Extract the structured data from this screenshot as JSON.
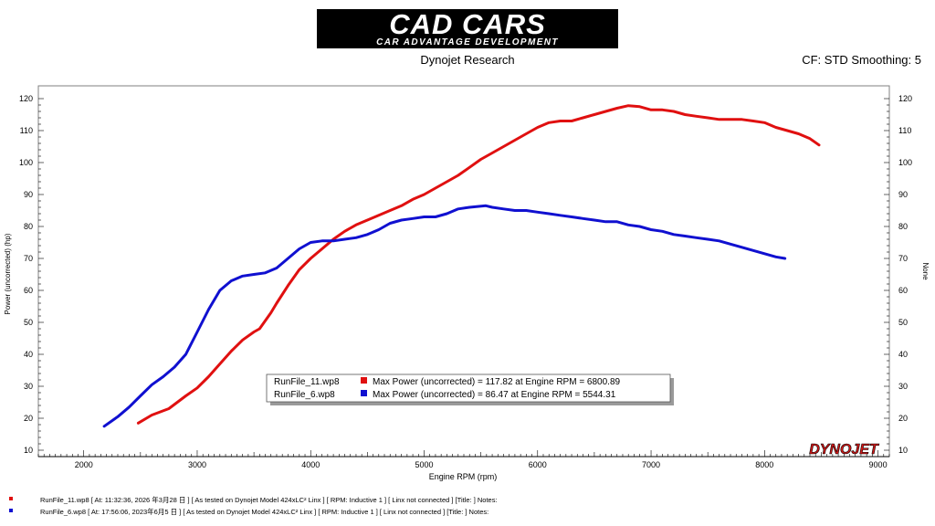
{
  "header": {
    "logo_line1": "CAD CARS",
    "logo_line2": "CAR ADVANTAGE DEVELOPMENT",
    "center": "Dynojet Research",
    "right": "CF: STD Smoothing: 5",
    "watermark": "DYNOJET"
  },
  "chart_data": {
    "type": "line",
    "xlabel": "Engine RPM (rpm)",
    "ylabel": "Power (uncorrected) (hp)",
    "y2label": "None",
    "xlim": [
      1600,
      9100
    ],
    "ylim": [
      8,
      124
    ],
    "xticks": [
      2000,
      3000,
      4000,
      5000,
      6000,
      7000,
      8000,
      9000
    ],
    "yticks": [
      10,
      20,
      30,
      40,
      50,
      60,
      70,
      80,
      90,
      100,
      110,
      120
    ],
    "grid": false,
    "series": [
      {
        "name": "RunFile_11.wp8",
        "color": "#e01010",
        "x": [
          2480,
          2600,
          2750,
          2900,
          3000,
          3100,
          3200,
          3300,
          3400,
          3500,
          3550,
          3650,
          3700,
          3800,
          3900,
          4000,
          4100,
          4200,
          4300,
          4400,
          4500,
          4600,
          4700,
          4800,
          4900,
          5000,
          5100,
          5200,
          5300,
          5400,
          5500,
          5600,
          5700,
          5800,
          5900,
          6000,
          6100,
          6200,
          6300,
          6400,
          6500,
          6600,
          6700,
          6800,
          6900,
          7000,
          7100,
          7200,
          7300,
          7400,
          7500,
          7600,
          7700,
          7800,
          7900,
          8000,
          8100,
          8200,
          8300,
          8400,
          8480
        ],
        "y": [
          18.5,
          21,
          23,
          27,
          29.5,
          33,
          37,
          41,
          44.5,
          47,
          48,
          53,
          56,
          61.5,
          66.5,
          70,
          73,
          76,
          78.5,
          80.5,
          82,
          83.5,
          85,
          86.5,
          88.5,
          90,
          92,
          94,
          96,
          98.5,
          101,
          103,
          105,
          107,
          109,
          111,
          112.5,
          113,
          113,
          114,
          115,
          116,
          117,
          117.8,
          117.5,
          116.5,
          116.5,
          116,
          115,
          114.5,
          114,
          113.5,
          113.5,
          113.5,
          113,
          112.5,
          111,
          110,
          109,
          107.5,
          105.5
        ]
      },
      {
        "name": "RunFile_6.wp8",
        "color": "#1010d0",
        "x": [
          2180,
          2300,
          2400,
          2500,
          2600,
          2700,
          2800,
          2900,
          3000,
          3100,
          3200,
          3300,
          3400,
          3500,
          3600,
          3700,
          3800,
          3900,
          4000,
          4100,
          4200,
          4300,
          4400,
          4500,
          4600,
          4700,
          4800,
          4900,
          5000,
          5100,
          5200,
          5300,
          5400,
          5544,
          5600,
          5700,
          5800,
          5900,
          6000,
          6100,
          6200,
          6300,
          6400,
          6500,
          6600,
          6700,
          6800,
          6900,
          7000,
          7100,
          7200,
          7300,
          7400,
          7500,
          7600,
          7700,
          7800,
          7900,
          8000,
          8100,
          8180
        ],
        "y": [
          17.5,
          20.5,
          23.5,
          27,
          30.5,
          33,
          36,
          40,
          47,
          54,
          60,
          63,
          64.5,
          65,
          65.5,
          67,
          70,
          73,
          75,
          75.5,
          75.5,
          76,
          76.5,
          77.5,
          79,
          81,
          82,
          82.5,
          83,
          83,
          84,
          85.5,
          86,
          86.5,
          86,
          85.5,
          85,
          85,
          84.5,
          84,
          83.5,
          83,
          82.5,
          82,
          81.5,
          81.5,
          80.5,
          80,
          79,
          78.5,
          77.5,
          77,
          76.5,
          76,
          75.5,
          74.5,
          73.5,
          72.5,
          71.5,
          70.5,
          70
        ]
      }
    ],
    "legend": {
      "position": "center",
      "entries": [
        {
          "name": "RunFile_11.wp8",
          "color": "#e01010",
          "text": "Max Power (uncorrected) = 117.82 at Engine RPM = 6800.89"
        },
        {
          "name": "RunFile_6.wp8",
          "color": "#1010d0",
          "text": "Max Power (uncorrected) = 86.47 at Engine RPM = 5544.31"
        }
      ]
    }
  },
  "notes": [
    {
      "color": "#e01010",
      "text": "RunFile_11.wp8  [  At:  11:32:36,  2026 年3月28 日 ]  [ As tested on Dynojet Model 424xLC² Linx ]  [ RPM: Inductive 1 ]  [ Linx not connected ]  [Title: ]   Notes:"
    },
    {
      "color": "#1010d0",
      "text": "RunFile_6.wp8  [  At:  17:56:06,  2023年6月5 日 ]  [ As tested on Dynojet Model 424xLC² Linx ]  [ RPM: Inductive 1 ]  [ Linx not connected ]  [Title: ]   Notes:"
    }
  ]
}
